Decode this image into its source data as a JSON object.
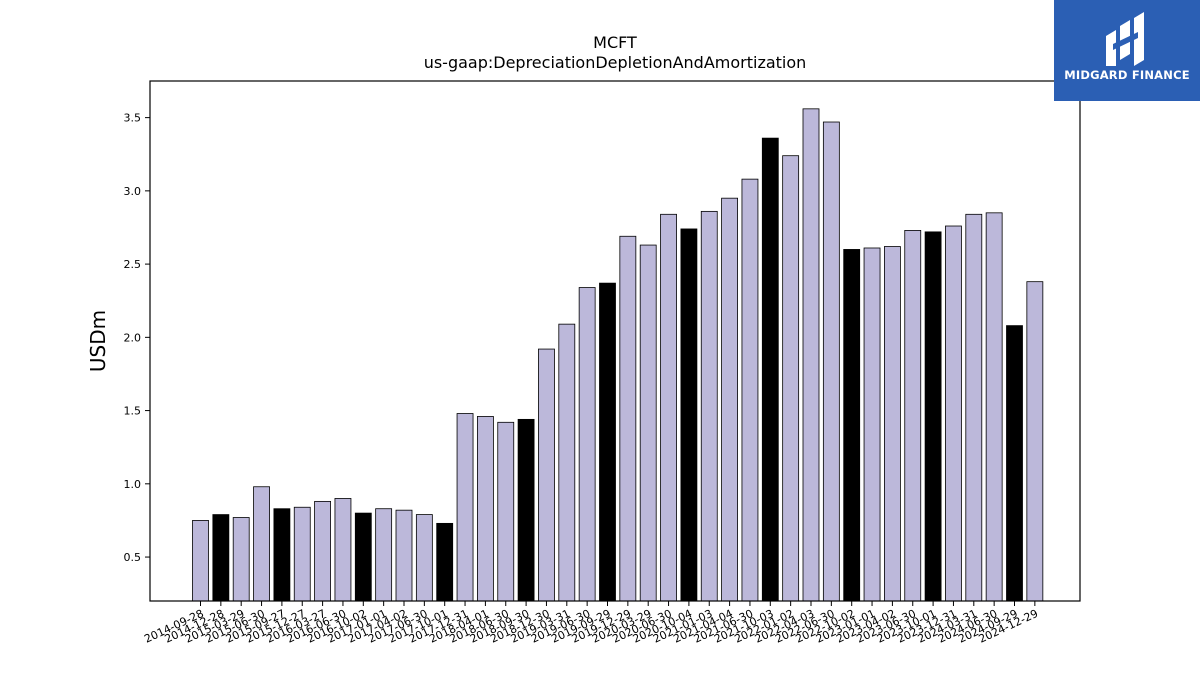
{
  "chart_data": {
    "type": "bar",
    "title": "MCFT",
    "subtitle": "us-gaap:DepreciationDepletionAndAmortization",
    "xlabel": "",
    "ylabel": "USDm",
    "ylim": [
      0.2,
      3.75
    ],
    "yticks": [
      "0.5",
      "1.0",
      "1.5",
      "2.0",
      "2.5",
      "3.0",
      "3.5"
    ],
    "grid": false,
    "categories": [
      "2014-09-28",
      "2014-12-28",
      "2015-03-29",
      "2015-06-30",
      "2015-09-27",
      "2015-12-27",
      "2016-03-27",
      "2016-06-30",
      "2016-10-02",
      "2017-01-01",
      "2017-04-02",
      "2017-06-30",
      "2017-10-01",
      "2017-12-31",
      "2018-04-01",
      "2018-06-30",
      "2018-09-30",
      "2018-12-30",
      "2019-03-31",
      "2019-06-30",
      "2019-09-29",
      "2019-12-29",
      "2020-03-29",
      "2020-06-30",
      "2020-10-04",
      "2021-01-03",
      "2021-04-04",
      "2021-06-30",
      "2021-10-03",
      "2022-01-02",
      "2022-04-03",
      "2022-06-30",
      "2022-10-02",
      "2023-01-01",
      "2023-04-02",
      "2023-06-30",
      "2023-10-01",
      "2023-12-31",
      "2024-03-31",
      "2024-06-30",
      "2024-09-29",
      "2024-12-29"
    ],
    "values": [
      0.75,
      0.79,
      0.77,
      0.98,
      0.83,
      0.84,
      0.88,
      0.9,
      0.8,
      0.83,
      0.82,
      0.79,
      0.73,
      1.48,
      1.46,
      1.42,
      1.44,
      1.92,
      2.09,
      2.34,
      2.37,
      2.69,
      2.63,
      2.84,
      2.74,
      2.86,
      2.95,
      3.08,
      3.36,
      3.24,
      3.56,
      3.47,
      2.6,
      2.61,
      2.62,
      2.73,
      2.72,
      2.76,
      2.84,
      2.85,
      2.08,
      2.38
    ],
    "highlighted": [
      false,
      true,
      false,
      false,
      true,
      false,
      false,
      false,
      true,
      false,
      false,
      false,
      true,
      false,
      false,
      false,
      true,
      false,
      false,
      false,
      true,
      false,
      false,
      false,
      true,
      false,
      false,
      false,
      true,
      false,
      false,
      false,
      true,
      false,
      false,
      false,
      true,
      false,
      false,
      false,
      true,
      false
    ],
    "colors": {
      "bar": "#bcb8da",
      "highlight": "#000000",
      "edge": "#000000"
    }
  },
  "logo": {
    "text": "MIDGARD FINANCE",
    "background": "#2b5fb4"
  }
}
